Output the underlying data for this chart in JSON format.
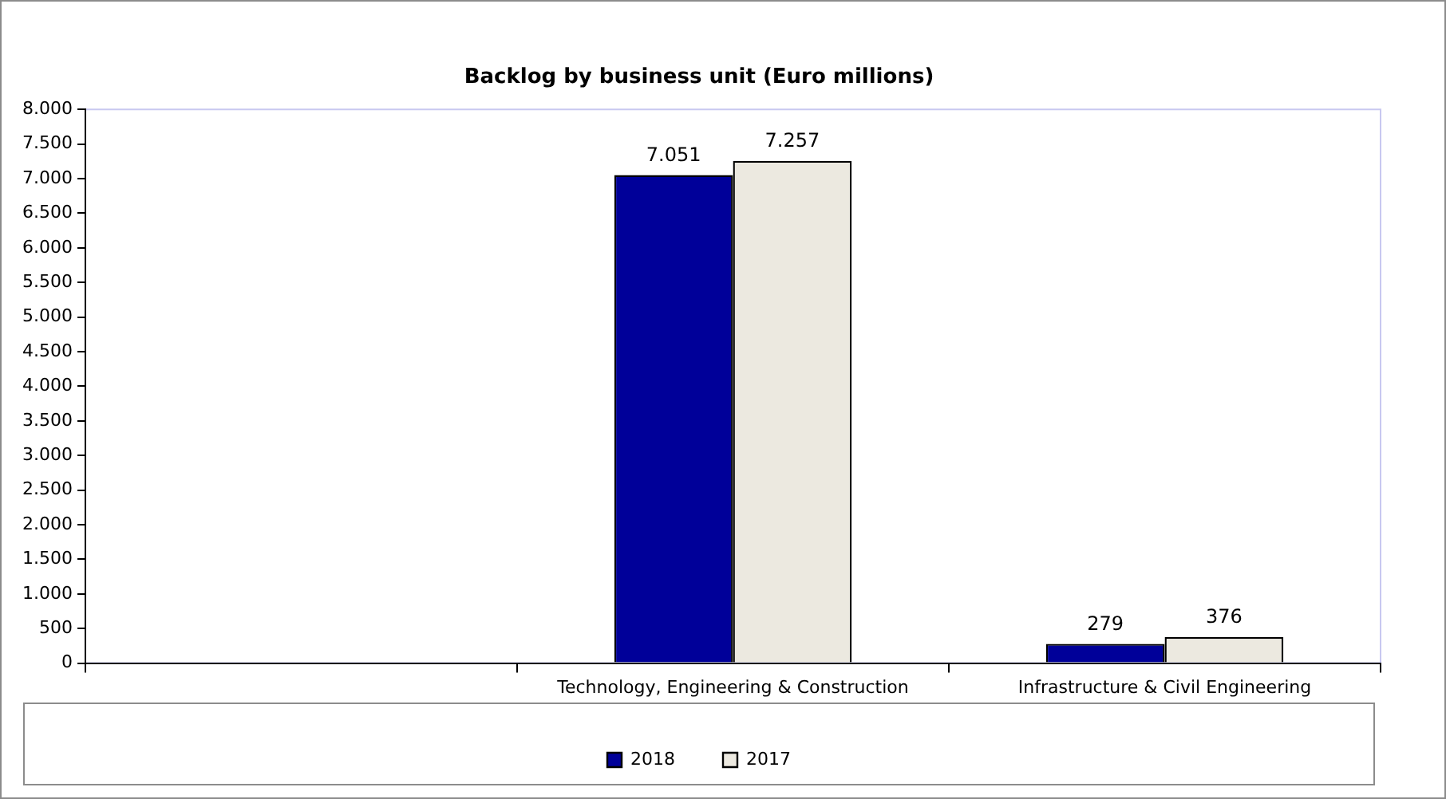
{
  "chart_data": {
    "type": "bar",
    "title": "Backlog by business unit (Euro millions)",
    "categories": [
      null,
      "Technology, Engineering & Construction",
      "Infrastructure & Civil Engineering"
    ],
    "series": [
      {
        "name": "2018",
        "color": "#000099",
        "values": [
          null,
          7051,
          279
        ],
        "value_labels": [
          null,
          "7.051",
          "279"
        ]
      },
      {
        "name": "2017",
        "color": "#ece9e0",
        "values": [
          null,
          7257,
          376
        ],
        "value_labels": [
          null,
          "7.257",
          "376"
        ]
      }
    ],
    "ylim": [
      0,
      8000
    ],
    "yticks": [
      0,
      500,
      {
        "value": 1000,
        "label": "1.000"
      },
      {
        "value": 1500,
        "label": "1.500"
      },
      {
        "value": 2000,
        "label": "2.000"
      },
      {
        "value": 2500,
        "label": "2.500"
      },
      {
        "value": 3000,
        "label": "3.000"
      },
      {
        "value": 3500,
        "label": "3.500"
      },
      {
        "value": 4000,
        "label": "4.000"
      },
      {
        "value": 4500,
        "label": "4.500"
      },
      {
        "value": 5000,
        "label": "5.000"
      },
      {
        "value": 5500,
        "label": "5.500"
      },
      {
        "value": 6000,
        "label": "6.000"
      },
      {
        "value": 6500,
        "label": "6.500"
      },
      {
        "value": 7000,
        "label": "7.000"
      },
      {
        "value": 7500,
        "label": "7.500"
      },
      {
        "value": 8000,
        "label": "8.000"
      }
    ],
    "grid": false,
    "legend": "bottom"
  }
}
